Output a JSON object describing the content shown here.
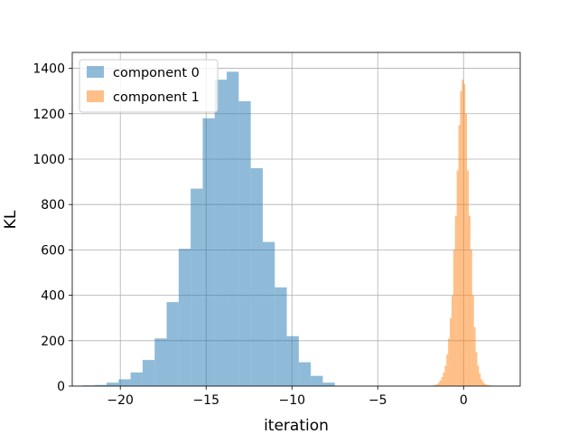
{
  "chart_data": {
    "type": "bar",
    "title": "",
    "xlabel": "iteration",
    "ylabel": "KL",
    "xlim": [
      -22.8,
      3.3
    ],
    "ylim": [
      0,
      1470
    ],
    "x_ticks": [
      -20,
      -15,
      -10,
      -5,
      0
    ],
    "x_tick_labels": [
      "−20",
      "−15",
      "−10",
      "−5",
      "0"
    ],
    "y_ticks": [
      0,
      200,
      400,
      600,
      800,
      1000,
      1200,
      1400
    ],
    "y_tick_labels": [
      "0",
      "200",
      "400",
      "600",
      "800",
      "1000",
      "1200",
      "1400"
    ],
    "grid": true,
    "legend_position": "top-left",
    "series": [
      {
        "name": "component 0",
        "color": "#1f77b4",
        "alpha": 0.5,
        "bin_edges": [
          -22.2,
          -21.5,
          -20.8,
          -20.1,
          -19.4,
          -18.7,
          -18.0,
          -17.3,
          -16.6,
          -15.9,
          -15.2,
          -14.5,
          -13.8,
          -13.1,
          -12.4,
          -11.7,
          -11.0,
          -10.3,
          -9.6,
          -8.9,
          -8.2,
          -7.5
        ],
        "counts": [
          3,
          5,
          15,
          30,
          60,
          115,
          210,
          370,
          605,
          870,
          1180,
          1350,
          1385,
          1255,
          960,
          635,
          435,
          220,
          105,
          45,
          15
        ]
      },
      {
        "name": "component 1",
        "color": "#ff7f0e",
        "alpha": 0.5,
        "bin_edges": [
          -1.8,
          -1.7,
          -1.6,
          -1.5,
          -1.4,
          -1.3,
          -1.2,
          -1.1,
          -1.0,
          -0.9,
          -0.8,
          -0.7,
          -0.6,
          -0.5,
          -0.4,
          -0.3,
          -0.2,
          -0.1,
          0.0,
          0.1,
          0.2,
          0.3,
          0.4,
          0.5,
          0.6,
          0.7,
          0.8,
          0.9,
          1.0,
          1.1,
          1.2,
          1.3,
          1.4,
          1.5,
          1.6,
          1.7,
          1.8,
          1.9
        ],
        "counts": [
          3,
          5,
          8,
          15,
          25,
          40,
          60,
          90,
          140,
          210,
          300,
          400,
          600,
          750,
          950,
          1150,
          1300,
          1350,
          1330,
          1200,
          950,
          750,
          600,
          400,
          260,
          150,
          90,
          55,
          30,
          18,
          10,
          6,
          4,
          3,
          2,
          2,
          1
        ]
      }
    ]
  }
}
